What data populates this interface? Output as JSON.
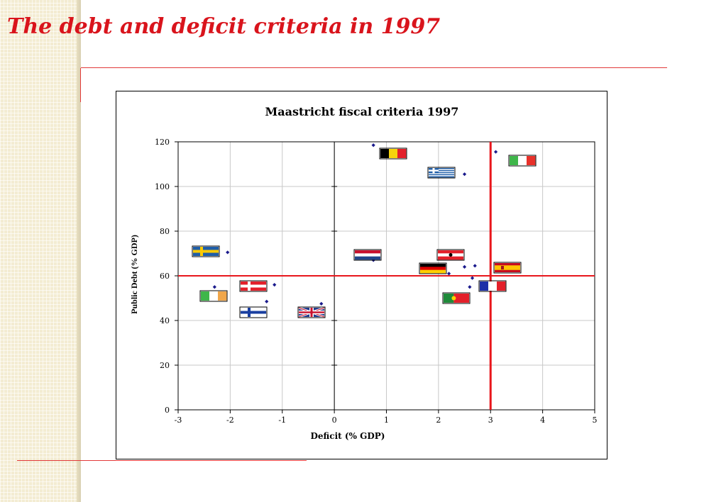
{
  "slide": {
    "title": "The debt and deficit criteria in 1997"
  },
  "colors": {
    "title": "#d9141c",
    "threshold_lines": "#e8161c",
    "points": "#1a1a8c"
  },
  "chart_data": {
    "type": "scatter",
    "title": "Maastricht fiscal criteria 1997",
    "xlabel": "Deficit (% GDP)",
    "ylabel": "Public Debt (% GDP)",
    "xlim": [
      -3,
      5
    ],
    "ylim": [
      0,
      120
    ],
    "x_ticks": [
      -3,
      -2,
      -1,
      0,
      1,
      2,
      3,
      4,
      5
    ],
    "y_ticks": [
      0,
      20,
      40,
      60,
      80,
      100,
      120
    ],
    "grid": true,
    "legend": "none (points marked by national flags)",
    "threshold_lines": [
      {
        "axis": "x",
        "value": 3
      },
      {
        "axis": "y",
        "value": 60
      }
    ],
    "points": [
      {
        "flag": "belgium",
        "x": 0.75,
        "y": 118.5
      },
      {
        "flag": "italy",
        "x": 3.1,
        "y": 115.5
      },
      {
        "flag": "greece",
        "x": 2.5,
        "y": 105.5
      },
      {
        "flag": "sweden",
        "x": -2.05,
        "y": 70.5
      },
      {
        "flag": "netherlands",
        "x": 0.75,
        "y": 67
      },
      {
        "flag": "austria",
        "x": 2.5,
        "y": 64
      },
      {
        "flag": "spain",
        "x": 2.7,
        "y": 64.5
      },
      {
        "flag": "germany",
        "x": 2.2,
        "y": 61
      },
      {
        "flag": "france",
        "x": 2.65,
        "y": 59
      },
      {
        "flag": "denmark",
        "x": -1.15,
        "y": 56
      },
      {
        "flag": "ireland",
        "x": -2.3,
        "y": 55
      },
      {
        "flag": "portugal",
        "x": 2.6,
        "y": 55
      },
      {
        "flag": "finland",
        "x": -1.3,
        "y": 48.5
      },
      {
        "flag": "uk",
        "x": -0.25,
        "y": 47.5
      }
    ]
  }
}
